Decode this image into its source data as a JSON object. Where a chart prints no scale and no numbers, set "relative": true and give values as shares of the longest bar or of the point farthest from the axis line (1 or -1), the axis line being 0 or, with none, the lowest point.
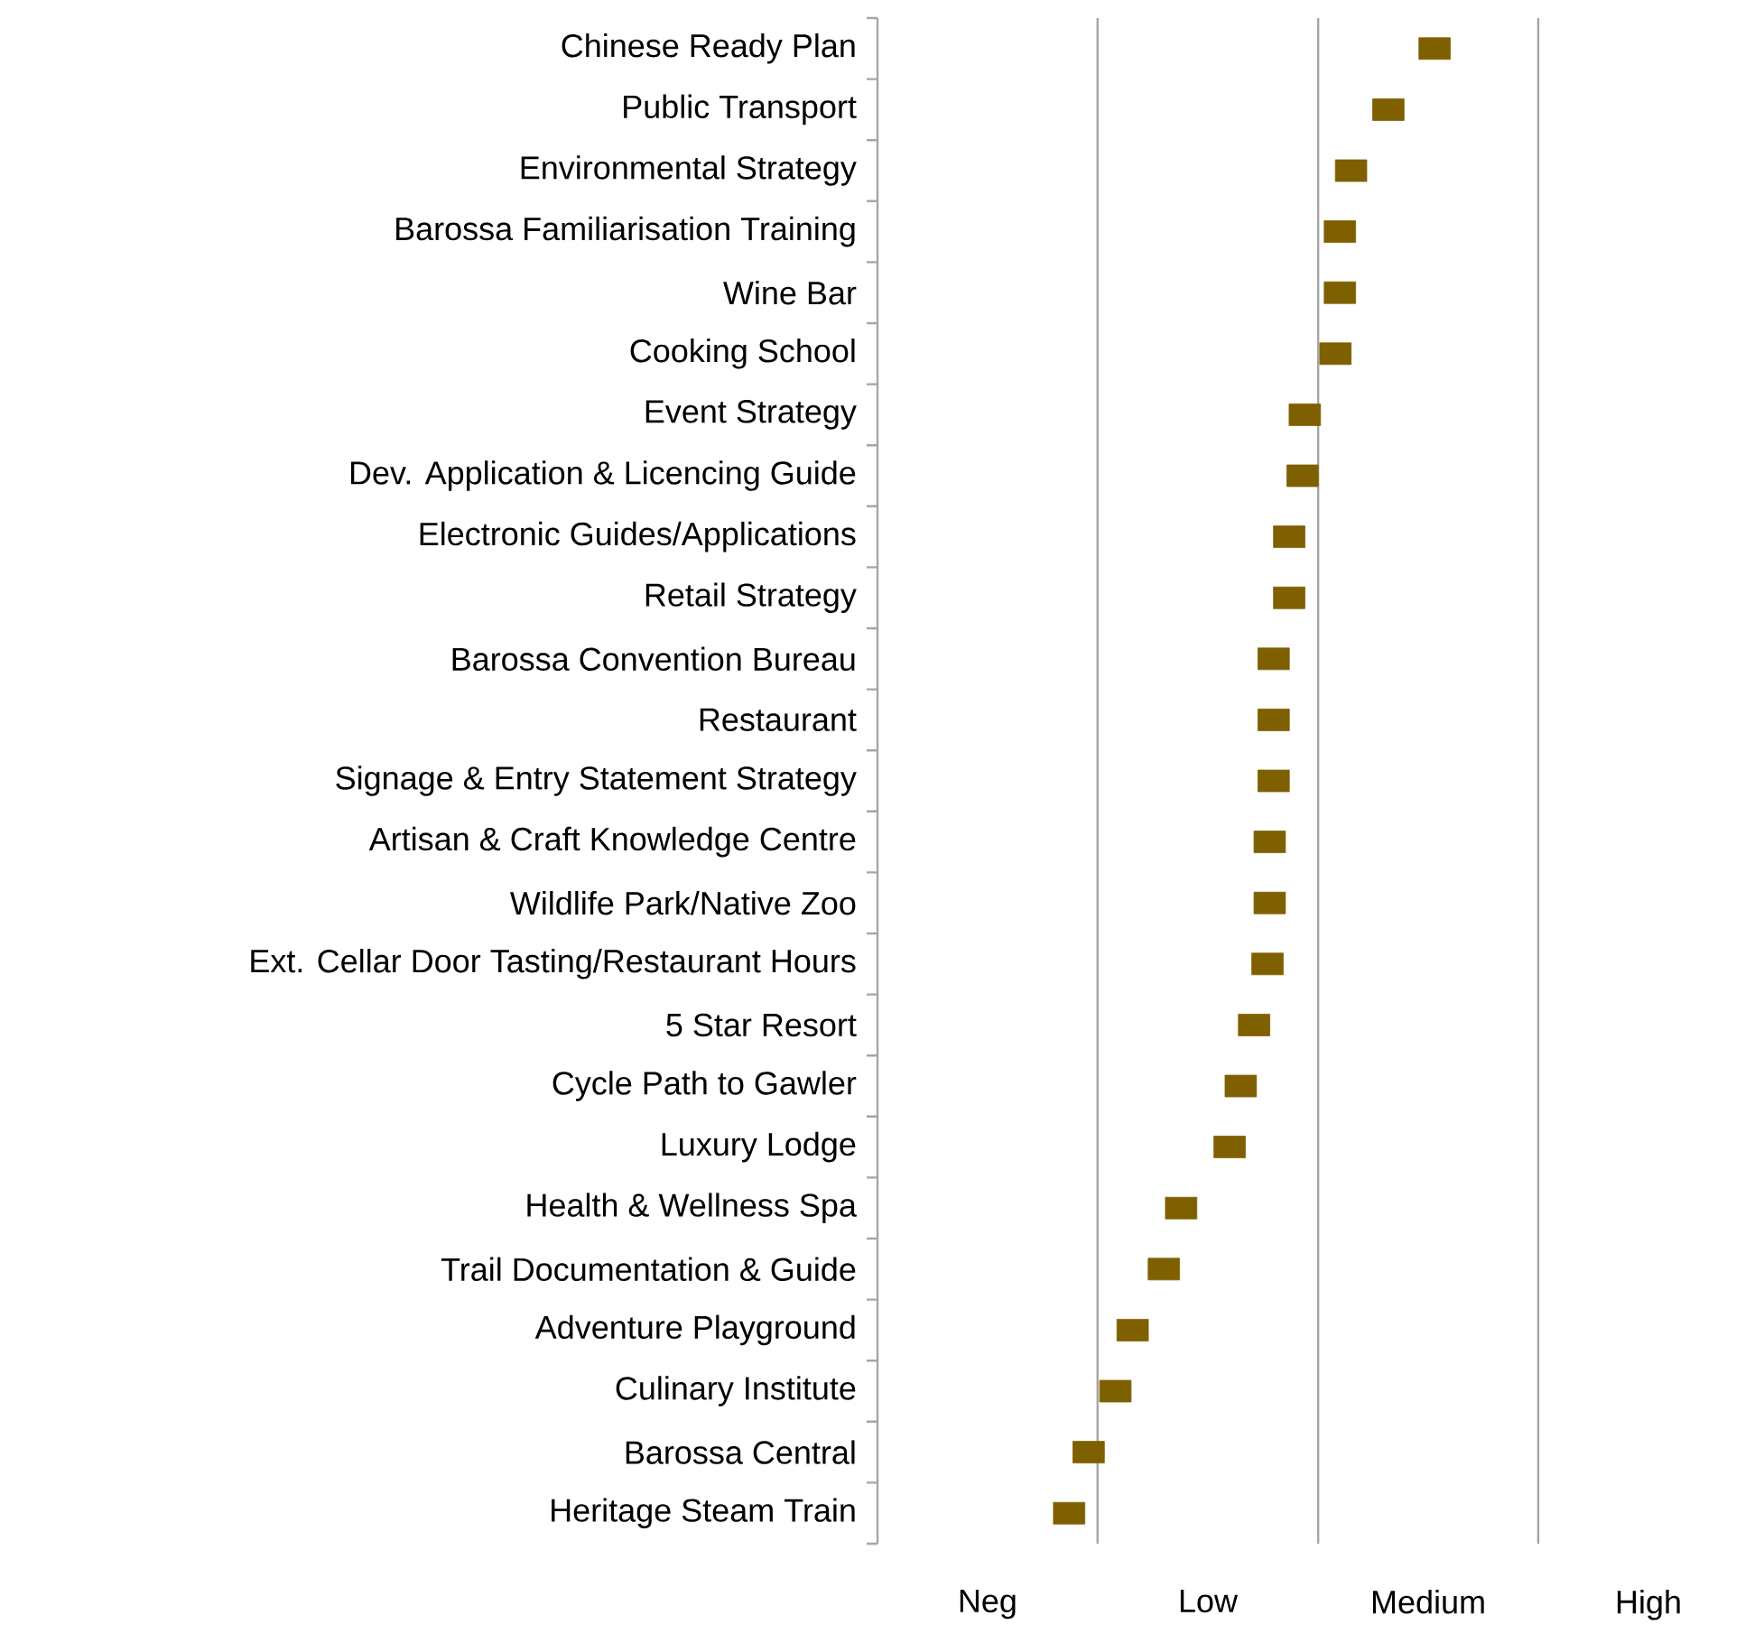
{
  "chart_data": {
    "type": "scatter",
    "orientation": "horizontal",
    "relative": true,
    "marker": "square",
    "categories": [
      "Chinese Ready Plan",
      "Public Transport",
      "Environmental Strategy",
      "Barossa Familiarisation Training",
      "Wine Bar",
      "Cooking School",
      "Event Strategy",
      "Dev. Application & Licencing Guide",
      "Electronic Guides/Applications",
      "Retail Strategy",
      "Barossa Convention Bureau",
      "Restaurant",
      "Signage & Entry Statement Strategy",
      "Artisan & Craft Knowledge Centre",
      "Wildlife Park/Native Zoo",
      "Ext. Cellar Door Tasting/Restaurant Hours",
      "5 Star Resort",
      "Cycle Path to Gawler",
      "Luxury Lodge",
      "Health & Wellness Spa",
      "Trail Documentation & Guide",
      "Adventure Playground",
      "Culinary Institute",
      "Barossa Central",
      "Heritage Steam Train"
    ],
    "values": [
      1.0,
      0.917,
      0.85,
      0.83,
      0.83,
      0.822,
      0.767,
      0.763,
      0.739,
      0.739,
      0.711,
      0.711,
      0.711,
      0.704,
      0.704,
      0.7,
      0.676,
      0.652,
      0.632,
      0.545,
      0.514,
      0.458,
      0.427,
      0.379,
      0.344
    ],
    "color": "#7f6000",
    "ref_lines": [
      {
        "axis": "x",
        "value": 0.395,
        "color": "#a6a6a6"
      },
      {
        "axis": "x",
        "value": 0.791,
        "color": "#a6a6a6"
      },
      {
        "axis": "x",
        "value": 1.186,
        "color": "#a6a6a6"
      }
    ],
    "annotations": [
      "Neg",
      "Low",
      "Medium",
      "High"
    ]
  }
}
